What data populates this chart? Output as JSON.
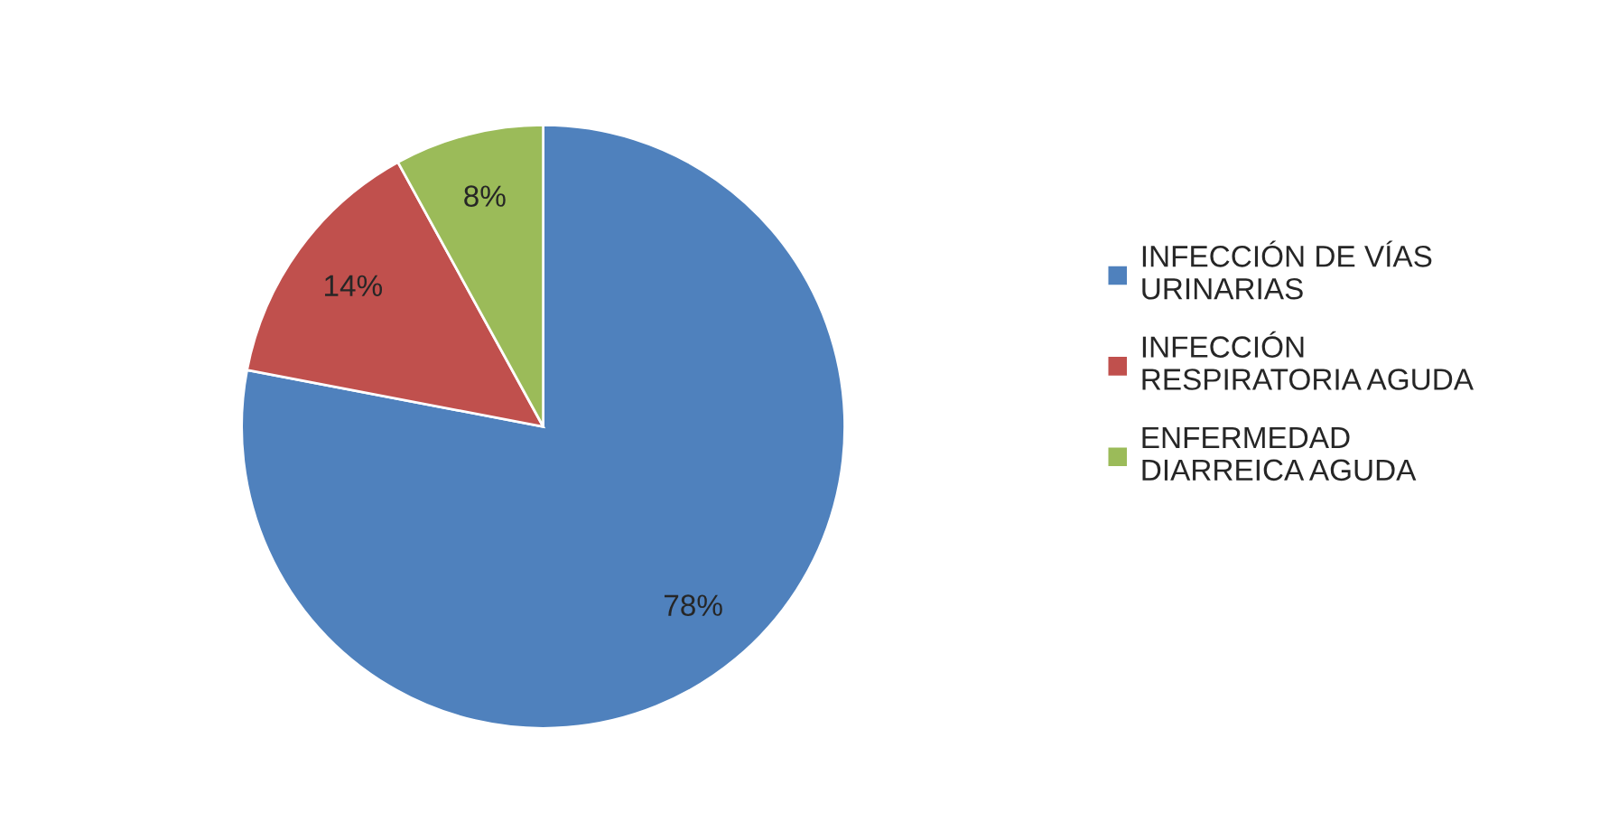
{
  "chart_data": {
    "type": "pie",
    "categories": [
      "INFECCIÓN DE VÍAS URINARIAS",
      "INFECCIÓN RESPIRATORIA AGUDA",
      "ENFERMEDAD DIARREICA AGUDA"
    ],
    "values": [
      78,
      14,
      8
    ],
    "colors": [
      "#4f81bd",
      "#c0504d",
      "#9bbb59"
    ],
    "value_labels": [
      "78%",
      "14%",
      "8%"
    ],
    "legend": "right"
  }
}
